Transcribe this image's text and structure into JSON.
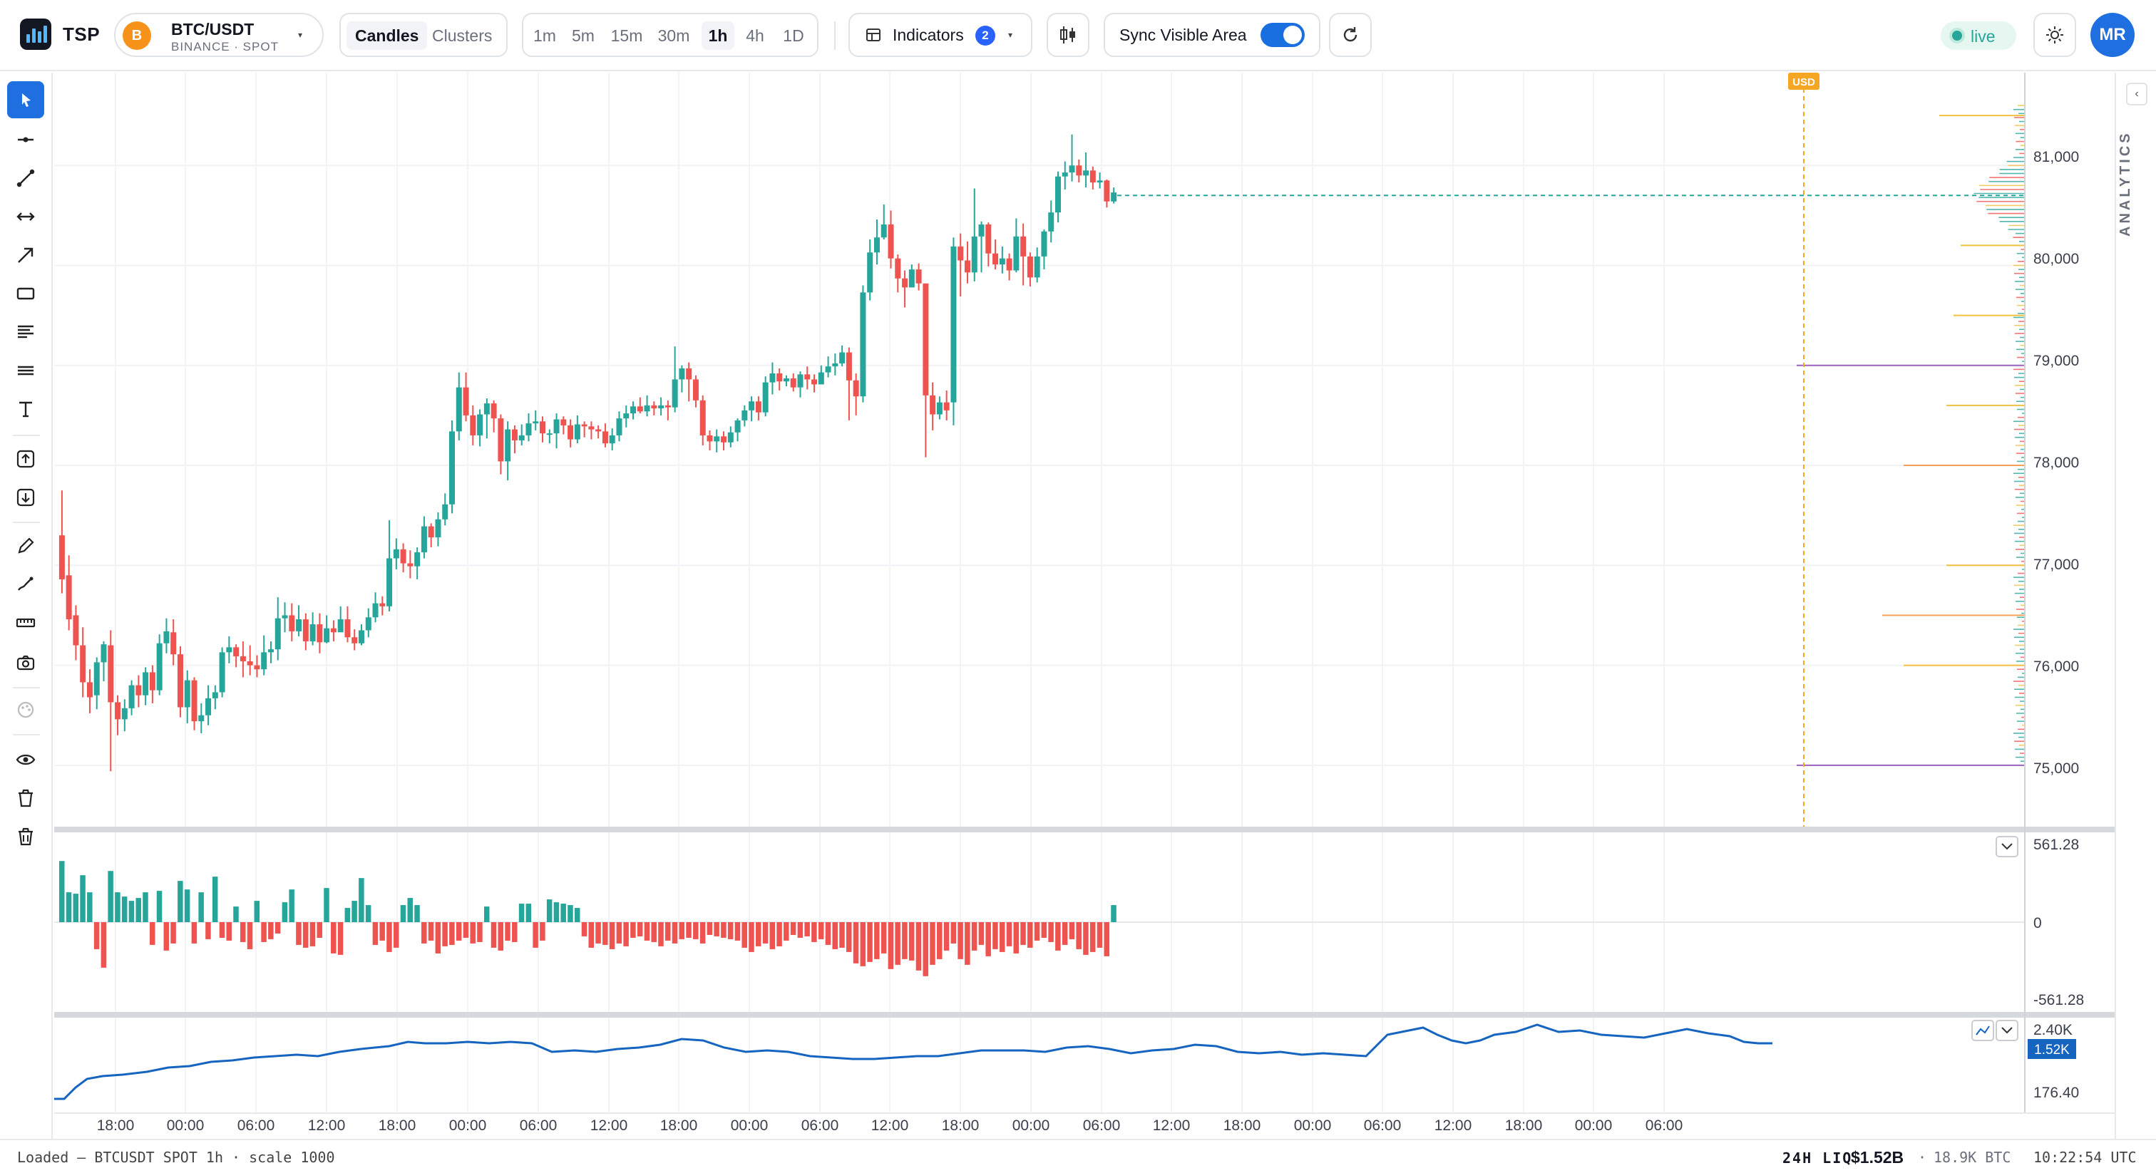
{
  "app": {
    "name": "TSP"
  },
  "symbol": {
    "pair": "BTC/USDT",
    "exchange": "BINANCE · SPOT",
    "coin_letter": "B"
  },
  "chart_mode": {
    "options": [
      "Candles",
      "Clusters"
    ],
    "active": "Candles"
  },
  "timeframes": {
    "options": [
      "1m",
      "5m",
      "15m",
      "30m",
      "1h",
      "4h",
      "1D"
    ],
    "active": "1h"
  },
  "indicators": {
    "label": "Indicators",
    "count": "2"
  },
  "sync": {
    "label": "Sync Visible Area",
    "enabled": true
  },
  "live": {
    "label": "live"
  },
  "user": {
    "initials": "MR"
  },
  "price_axis": {
    "labels": [
      "81,000",
      "80,000",
      "79,000",
      "78,000",
      "77,000",
      "76,000",
      "75,000"
    ],
    "currency_tag": "USD"
  },
  "delta_axis": {
    "top": "561.28",
    "mid": "0",
    "bottom": "-561.28"
  },
  "indicator_axis": {
    "top": "2.40K",
    "current": "1.52K",
    "bottom": "176.40"
  },
  "time_axis": {
    "labels": [
      "18:00",
      "00:00",
      "06:00",
      "12:00",
      "18:00",
      "00:00",
      "06:00",
      "12:00",
      "18:00",
      "00:00",
      "06:00",
      "12:00",
      "18:00",
      "00:00",
      "06:00",
      "12:00",
      "18:00",
      "00:00",
      "06:00",
      "12:00",
      "18:00",
      "00:00",
      "06:00"
    ]
  },
  "right_panel": {
    "label": "ANALYTICS",
    "collapse_icon": "chevron-left-icon"
  },
  "status": {
    "loaded_text": "Loaded — BTCUSDT SPOT 1h · scale 1000",
    "liq_label": "24H LIQ",
    "liq_value": "$1.52B",
    "liq_separator": "·",
    "liq_btc": "18.9K BTC",
    "clock": "10:22:54 UTC"
  },
  "tools": [
    "cursor-icon",
    "horizontal-line-icon",
    "trend-line-icon",
    "range-icon",
    "arrow-icon",
    "rectangle-icon",
    "text-lines-icon",
    "parallel-lines-icon",
    "text-icon",
    "long-position-icon",
    "short-position-icon",
    "pencil-icon",
    "brush-icon",
    "ruler-icon",
    "camera-icon",
    "palette-icon",
    "eye-icon",
    "trash-icon",
    "trash-all-icon"
  ],
  "colors": {
    "up": "#26a69a",
    "down": "#ef5350",
    "accent": "#1f6fe0",
    "line": "#1565c0",
    "usd_marker": "#f5a623"
  },
  "chart_data": {
    "type": "candlestick",
    "timeframe": "1h",
    "price_scale": [
      74400,
      81800
    ],
    "candles": [
      [
        77300,
        76860,
        77750,
        76720
      ],
      [
        76900,
        76460,
        77100,
        76350
      ],
      [
        76500,
        76200,
        76600,
        76050
      ],
      [
        76200,
        75830,
        76380,
        75680
      ],
      [
        75830,
        75680,
        75960,
        75520
      ],
      [
        75700,
        76030,
        76080,
        75560
      ],
      [
        76030,
        76210,
        76240,
        75840
      ],
      [
        76200,
        75630,
        76350,
        74940
      ],
      [
        75630,
        75460,
        75700,
        75300
      ],
      [
        75460,
        75570,
        75660,
        75340
      ],
      [
        75570,
        75800,
        75850,
        75500
      ],
      [
        75800,
        75700,
        75900,
        75580
      ],
      [
        75700,
        75930,
        75980,
        75600
      ],
      [
        75930,
        75750,
        76000,
        75620
      ],
      [
        75750,
        76220,
        76310,
        75700
      ],
      [
        76220,
        76340,
        76470,
        76120
      ],
      [
        76330,
        76110,
        76460,
        76000
      ],
      [
        76110,
        75580,
        76190,
        75480
      ],
      [
        75580,
        75850,
        75950,
        75420
      ],
      [
        75850,
        75440,
        75880,
        75350
      ],
      [
        75440,
        75500,
        75620,
        75320
      ],
      [
        75500,
        75670,
        75800,
        75400
      ],
      [
        75670,
        75730,
        75800,
        75560
      ],
      [
        75730,
        76130,
        76180,
        75680
      ],
      [
        76130,
        76180,
        76290,
        76020
      ],
      [
        76180,
        76090,
        76210,
        75980
      ],
      [
        76090,
        76040,
        76240,
        75880
      ],
      [
        76040,
        76000,
        76200,
        75900
      ],
      [
        76000,
        75960,
        76100,
        75880
      ],
      [
        75960,
        76130,
        76300,
        75900
      ],
      [
        76130,
        76160,
        76240,
        76020
      ],
      [
        76160,
        76470,
        76680,
        76050
      ],
      [
        76470,
        76500,
        76630,
        76330
      ],
      [
        76500,
        76340,
        76620,
        76240
      ],
      [
        76340,
        76460,
        76600,
        76290
      ],
      [
        76460,
        76240,
        76520,
        76150
      ],
      [
        76240,
        76410,
        76530,
        76200
      ],
      [
        76410,
        76230,
        76520,
        76120
      ],
      [
        76230,
        76370,
        76500,
        76220
      ],
      [
        76370,
        76330,
        76450,
        76240
      ],
      [
        76330,
        76460,
        76590,
        76370
      ],
      [
        76460,
        76280,
        76590,
        76230
      ],
      [
        76280,
        76220,
        76360,
        76150
      ],
      [
        76220,
        76350,
        76410,
        76200
      ],
      [
        76350,
        76480,
        76570,
        76280
      ],
      [
        76480,
        76620,
        76730,
        76430
      ],
      [
        76620,
        76590,
        76690,
        76500
      ],
      [
        76590,
        77070,
        77450,
        76540
      ],
      [
        77070,
        77160,
        77270,
        76960
      ],
      [
        77160,
        77020,
        77220,
        76930
      ],
      [
        77020,
        76990,
        77150,
        76870
      ],
      [
        76990,
        77130,
        77180,
        76860
      ],
      [
        77130,
        77390,
        77490,
        77070
      ],
      [
        77390,
        77280,
        77420,
        77180
      ],
      [
        77280,
        77460,
        77530,
        77190
      ],
      [
        77460,
        77610,
        77720,
        77400
      ],
      [
        77610,
        78340,
        78450,
        77520
      ],
      [
        78340,
        78780,
        78930,
        78250
      ],
      [
        78780,
        78500,
        78930,
        78440
      ],
      [
        78500,
        78300,
        78600,
        78200
      ],
      [
        78300,
        78510,
        78560,
        78190
      ],
      [
        78510,
        78620,
        78670,
        78270
      ],
      [
        78620,
        78470,
        78650,
        78330
      ],
      [
        78470,
        78040,
        78510,
        77910
      ],
      [
        78040,
        78360,
        78440,
        77850
      ],
      [
        78360,
        78250,
        78400,
        78120
      ],
      [
        78250,
        78300,
        78410,
        78200
      ],
      [
        78300,
        78420,
        78520,
        78240
      ],
      [
        78420,
        78440,
        78550,
        78350
      ],
      [
        78440,
        78320,
        78490,
        78230
      ],
      [
        78320,
        78320,
        78360,
        78220
      ],
      [
        78320,
        78460,
        78520,
        78170
      ],
      [
        78460,
        78400,
        78490,
        78310
      ],
      [
        78400,
        78260,
        78460,
        78180
      ],
      [
        78260,
        78410,
        78500,
        78220
      ],
      [
        78410,
        78390,
        78440,
        78280
      ],
      [
        78390,
        78360,
        78440,
        78260
      ],
      [
        78360,
        78340,
        78400,
        78270
      ],
      [
        78340,
        78220,
        78420,
        78180
      ],
      [
        78220,
        78300,
        78370,
        78150
      ],
      [
        78300,
        78470,
        78540,
        78240
      ],
      [
        78470,
        78520,
        78600,
        78380
      ],
      [
        78520,
        78590,
        78640,
        78460
      ],
      [
        78590,
        78540,
        78680,
        78520
      ],
      [
        78540,
        78600,
        78700,
        78490
      ],
      [
        78600,
        78570,
        78640,
        78500
      ],
      [
        78570,
        78600,
        78680,
        78500
      ],
      [
        78600,
        78580,
        78650,
        78450
      ],
      [
        78580,
        78860,
        79190,
        78530
      ],
      [
        78860,
        78970,
        79000,
        78730
      ],
      [
        78970,
        78860,
        79030,
        78640
      ],
      [
        78860,
        78650,
        78900,
        78580
      ],
      [
        78650,
        78300,
        78700,
        78200
      ],
      [
        78300,
        78240,
        78350,
        78150
      ],
      [
        78240,
        78290,
        78360,
        78130
      ],
      [
        78290,
        78230,
        78340,
        78150
      ],
      [
        78230,
        78330,
        78390,
        78180
      ],
      [
        78330,
        78450,
        78470,
        78240
      ],
      [
        78450,
        78550,
        78600,
        78390
      ],
      [
        78550,
        78640,
        78690,
        78440
      ],
      [
        78640,
        78530,
        78690,
        78450
      ],
      [
        78530,
        78830,
        78890,
        78490
      ],
      [
        78830,
        78920,
        79030,
        78710
      ],
      [
        78920,
        78840,
        78970,
        78750
      ],
      [
        78840,
        78870,
        78900,
        78790
      ],
      [
        78870,
        78780,
        78920,
        78740
      ],
      [
        78780,
        78910,
        78940,
        78680
      ],
      [
        78910,
        78860,
        78990,
        78760
      ],
      [
        78860,
        78810,
        78910,
        78730
      ],
      [
        78810,
        78930,
        79000,
        78820
      ],
      [
        78930,
        78990,
        79090,
        78880
      ],
      [
        78990,
        79020,
        79120,
        78900
      ],
      [
        79020,
        79130,
        79200,
        78990
      ],
      [
        79130,
        78850,
        79180,
        78450
      ],
      [
        78850,
        78690,
        78920,
        78500
      ],
      [
        78690,
        79730,
        79800,
        78630
      ],
      [
        79730,
        80130,
        80260,
        79650
      ],
      [
        80130,
        80280,
        80460,
        80010
      ],
      [
        80280,
        80410,
        80610,
        80260
      ],
      [
        80410,
        80070,
        80550,
        79970
      ],
      [
        80070,
        79870,
        80110,
        79730
      ],
      [
        79870,
        79780,
        79950,
        79580
      ],
      [
        79780,
        79960,
        80010,
        79810
      ],
      [
        79960,
        79820,
        80020,
        79750
      ],
      [
        79820,
        78700,
        79770,
        78080
      ],
      [
        78700,
        78510,
        78830,
        78350
      ],
      [
        78510,
        78630,
        78690,
        78460
      ],
      [
        78630,
        78550,
        78750,
        78450
      ],
      [
        78630,
        80190,
        80280,
        78400
      ],
      [
        80190,
        80050,
        80320,
        79690
      ],
      [
        80050,
        79930,
        80240,
        79820
      ],
      [
        79930,
        80290,
        80770,
        79840
      ],
      [
        80290,
        80410,
        80440,
        79930
      ],
      [
        80410,
        80120,
        80430,
        79990
      ],
      [
        80120,
        80010,
        80260,
        79960
      ],
      [
        80010,
        80070,
        80190,
        79920
      ],
      [
        80070,
        79950,
        80120,
        79850
      ],
      [
        79950,
        80290,
        80470,
        79930
      ],
      [
        80290,
        80090,
        80420,
        79800
      ],
      [
        80090,
        79880,
        80130,
        79790
      ],
      [
        79880,
        80090,
        80180,
        79830
      ],
      [
        80090,
        80340,
        80360,
        79960
      ],
      [
        80340,
        80530,
        80650,
        80230
      ],
      [
        80530,
        80890,
        80940,
        80430
      ],
      [
        80890,
        80930,
        81040,
        80760
      ],
      [
        80930,
        81000,
        81310,
        80840
      ],
      [
        81000,
        80900,
        81060,
        80830
      ],
      [
        80900,
        80950,
        81130,
        80780
      ],
      [
        80950,
        80830,
        80990,
        80760
      ],
      [
        80830,
        80850,
        80930,
        80770
      ],
      [
        80850,
        80640,
        80860,
        80580
      ],
      [
        80640,
        80730,
        80780,
        80620
      ]
    ],
    "delta": [
      430,
      210,
      200,
      330,
      210,
      -190,
      -320,
      360,
      210,
      180,
      150,
      170,
      210,
      -160,
      220,
      -200,
      -150,
      290,
      230,
      -150,
      210,
      -120,
      320,
      -110,
      -130,
      110,
      -140,
      -190,
      150,
      -140,
      -120,
      -80,
      140,
      230,
      -160,
      -180,
      -170,
      -110,
      240,
      -220,
      -230,
      100,
      150,
      310,
      120,
      -160,
      -130,
      -210,
      -180,
      120,
      170,
      120,
      -150,
      -130,
      -220,
      -170,
      -160,
      -130,
      -110,
      -150,
      -140,
      110,
      -180,
      -200,
      -130,
      -140,
      130,
      130,
      -180,
      -130,
      160,
      140,
      130,
      120,
      100,
      -100,
      -180,
      -150,
      -160,
      -190,
      -150,
      -170,
      -110,
      -100,
      -130,
      -140,
      -170,
      -130,
      -150,
      -120,
      -110,
      -120,
      -150,
      -90,
      -100,
      -110,
      -120,
      -130,
      -180,
      -210,
      -170,
      -150,
      -190,
      -170,
      -130,
      -90,
      -110,
      -100,
      -140,
      -120,
      -160,
      -190,
      -180,
      -210,
      -290,
      -310,
      -280,
      -260,
      -220,
      -330,
      -300,
      -260,
      -270,
      -340,
      -380,
      -300,
      -260,
      -200,
      -150,
      -260,
      -300,
      -200,
      -160,
      -240,
      -190,
      -210,
      -170,
      -220,
      -160,
      -180,
      -130,
      -110,
      -140,
      -200,
      -160,
      -120,
      -190,
      -230,
      -210,
      -180,
      -240,
      120
    ],
    "delta_range": [
      -561.28,
      561.28
    ],
    "indicator_line": {
      "range": [
        176.4,
        2.4
      ],
      "current_label": "1.52K"
    },
    "price_marker": 80700,
    "usd_marker_x": "future"
  }
}
